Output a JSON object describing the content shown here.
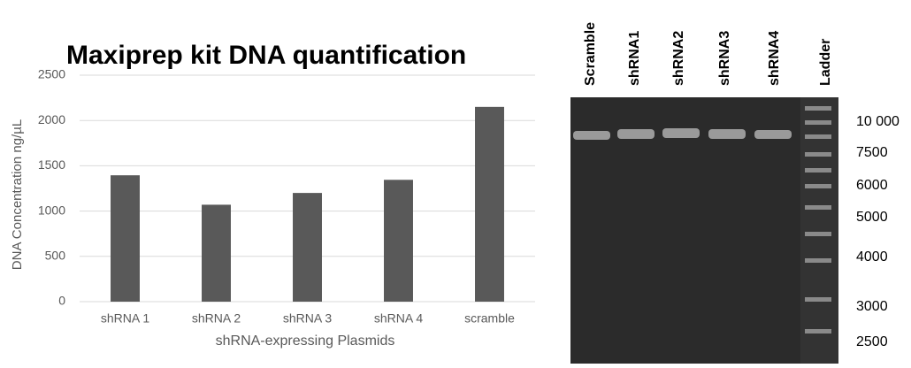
{
  "chart_data": {
    "type": "bar",
    "title": "Maxiprep kit DNA quantification",
    "x_label": "shRNA-expressing Plasmids",
    "y_label": "DNA Concentration ng/µL",
    "categories": [
      "shRNA 1",
      "shRNA 2",
      "shRNA 3",
      "shRNA 4",
      "scramble"
    ],
    "values": [
      1395,
      1070,
      1200,
      1345,
      2150
    ],
    "color": "#595959",
    "ylim": [
      0,
      2500
    ],
    "yticks": [
      0,
      500,
      1000,
      1500,
      2000,
      2500
    ],
    "grid": true
  },
  "gel": {
    "lanes": [
      "Scramble",
      "shRNA1",
      "shRNA2",
      "shRNA3",
      "shRNA4",
      "Ladder"
    ],
    "ladder_labels": [
      "10 000",
      "7500",
      "6000",
      "5000",
      "4000",
      "3000",
      "2500"
    ]
  }
}
